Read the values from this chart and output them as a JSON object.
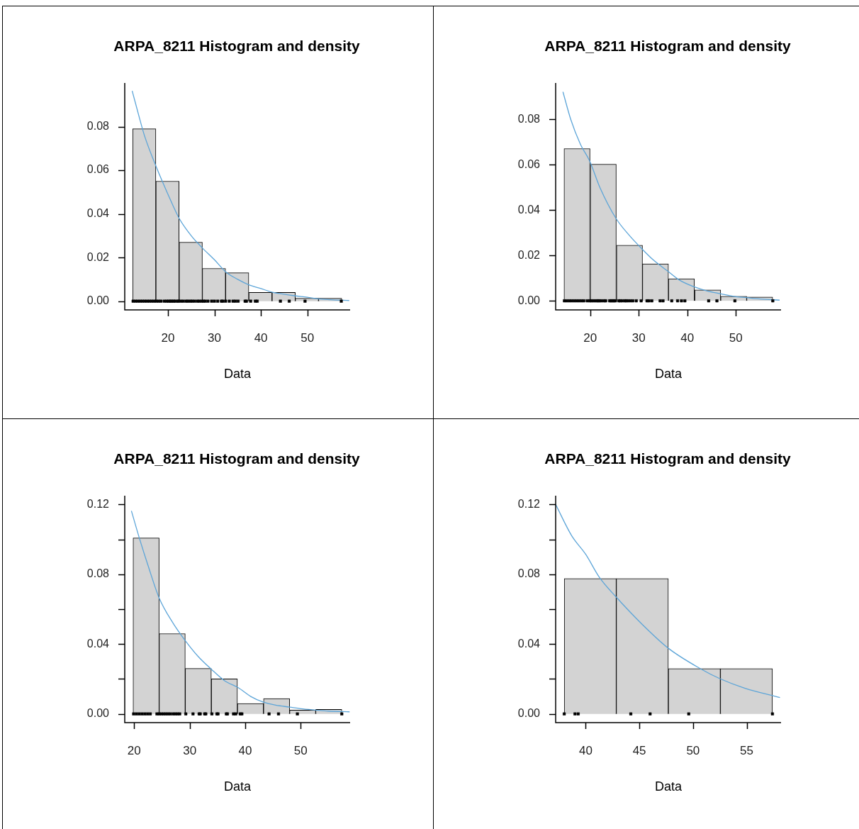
{
  "chart_data": [
    {
      "type": "histogram",
      "title": "ARPA_8211 Histogram and density",
      "xlabel": "Data",
      "color": "#d3d3d3",
      "bins": [
        12.4,
        17.4,
        22.4,
        27.4,
        32.4,
        37.4,
        42.4,
        47.4,
        52.4,
        57.4
      ],
      "values": [
        0.079,
        0.055,
        0.027,
        0.015,
        0.013,
        0.004,
        0.004,
        0.0013,
        0.0013
      ],
      "xlim": [
        10.7,
        59.2
      ],
      "ylim": [
        -0.004,
        0.1
      ],
      "xticks": [
        20,
        30,
        40,
        50
      ],
      "yticks": [
        {
          "value": 0,
          "label": "0.00"
        },
        {
          "value": 0.02,
          "label": "0.02"
        },
        {
          "value": 0.04,
          "label": "0.04"
        },
        {
          "value": 0.06,
          "label": "0.06"
        },
        {
          "value": 0.08,
          "label": "0.08"
        }
      ],
      "series": [
        {
          "type": "line",
          "color": "#5da5d8",
          "x": [
            12.3,
            14,
            15,
            17.4,
            20,
            22.4,
            25,
            27.4,
            30,
            32.4,
            35,
            37.4,
            40,
            42.3,
            45,
            47.2,
            50,
            52.2,
            55,
            59.0
          ],
          "values": [
            0.0964,
            0.0829,
            0.0755,
            0.062,
            0.049,
            0.038,
            0.03,
            0.0244,
            0.019,
            0.0135,
            0.01,
            0.0075,
            0.0058,
            0.0042,
            0.0032,
            0.0025,
            0.0018,
            0.0011,
            0.0007,
            0.0003
          ]
        },
        {
          "type": "scatter",
          "marker": "square",
          "color": "#000000",
          "x": [
            12.5,
            13,
            13.5,
            14,
            14.5,
            15,
            15.5,
            16,
            16.5,
            17,
            17.5,
            18,
            18.5,
            19.2,
            19.7,
            20.1,
            20.5,
            20.8,
            21.2,
            21.5,
            22.0,
            22.3,
            22.8,
            23.3,
            23.9,
            24.3,
            24.8,
            25.2,
            25.7,
            26.3,
            26.7,
            27.2,
            27.6,
            28.0,
            28.6,
            29.4,
            30.0,
            30.7,
            31.5,
            31.8,
            32.4,
            33.2,
            34.0,
            34.5,
            35.1,
            36.6,
            36.9,
            37.8,
            38.8,
            39.2,
            44.2,
            46.1,
            49.5,
            57.3
          ],
          "values": [
            0,
            0,
            0,
            0,
            0,
            0,
            0,
            0,
            0,
            0,
            0,
            0,
            0,
            0,
            0,
            0,
            0,
            0,
            0,
            0,
            0,
            0,
            0,
            0,
            0,
            0,
            0,
            0,
            0,
            0,
            0,
            0,
            0,
            0,
            0,
            0,
            0,
            0,
            0,
            0,
            0,
            0,
            0,
            0,
            0,
            0,
            0,
            0,
            0,
            0,
            0,
            0,
            0,
            0
          ]
        }
      ]
    },
    {
      "type": "histogram",
      "title": "ARPA_8211 Histogram and density",
      "xlabel": "Data",
      "color": "#d3d3d3",
      "bins": [
        14.6,
        20.0,
        25.4,
        30.8,
        36.1,
        41.5,
        46.9,
        52.2,
        57.6
      ],
      "values": [
        0.0671,
        0.0602,
        0.0245,
        0.0163,
        0.0097,
        0.0048,
        0.002,
        0.0017
      ],
      "xlim": [
        12.9,
        59.3
      ],
      "ylim": [
        -0.004,
        0.096
      ],
      "xticks": [
        20,
        30,
        40,
        50
      ],
      "yticks": [
        {
          "value": 0,
          "label": "0.00"
        },
        {
          "value": 0.02,
          "label": "0.02"
        },
        {
          "value": 0.04,
          "label": "0.04"
        },
        {
          "value": 0.06,
          "label": "0.06"
        },
        {
          "value": 0.08,
          "label": "0.08"
        }
      ],
      "series": [
        {
          "type": "line",
          "color": "#5da5d8",
          "x": [
            14.4,
            16,
            18,
            19.9,
            22,
            25.3,
            28,
            30.7,
            33,
            36.1,
            38.5,
            41.5,
            44,
            46.9,
            49.5,
            52.2,
            55,
            59.0
          ],
          "values": [
            0.0921,
            0.08,
            0.069,
            0.0616,
            0.05,
            0.0364,
            0.029,
            0.0228,
            0.018,
            0.0129,
            0.009,
            0.0061,
            0.0044,
            0.0031,
            0.002,
            0.0014,
            0.0008,
            0.0003
          ]
        },
        {
          "type": "scatter",
          "marker": "square",
          "color": "#000000",
          "x": [
            14.7,
            15.2,
            15.7,
            16.2,
            16.7,
            17.2,
            17.7,
            18.2,
            18.7,
            19.4,
            19.9,
            20.2,
            20.6,
            21.0,
            21.4,
            21.7,
            22.0,
            22.4,
            22.9,
            23.2,
            24.0,
            24.3,
            24.6,
            24.9,
            25.2,
            25.9,
            26.2,
            26.6,
            27.1,
            27.4,
            27.8,
            28.3,
            28.8,
            29.5,
            30.5,
            31.7,
            32.1,
            32.7,
            34.4,
            35.0,
            36.8,
            38.0,
            38.8,
            39.5,
            44.4,
            46.1,
            49.8,
            57.6
          ],
          "values": [
            0,
            0,
            0,
            0,
            0,
            0,
            0,
            0,
            0,
            0,
            0,
            0,
            0,
            0,
            0,
            0,
            0,
            0,
            0,
            0,
            0,
            0,
            0,
            0,
            0,
            0,
            0,
            0,
            0,
            0,
            0,
            0,
            0,
            0,
            0,
            0,
            0,
            0,
            0,
            0,
            0,
            0,
            0,
            0,
            0,
            0,
            0,
            0
          ]
        }
      ]
    },
    {
      "type": "histogram",
      "title": "ARPA_8211 Histogram and density",
      "xlabel": "Data",
      "color": "#d3d3d3",
      "bins": [
        19.8,
        24.5,
        29.2,
        33.9,
        38.6,
        43.3,
        48.0,
        52.7,
        57.4
      ],
      "values": [
        0.1008,
        0.046,
        0.026,
        0.0201,
        0.0059,
        0.0088,
        0.0022,
        0.0026
      ],
      "xlim": [
        18.3,
        58.9
      ],
      "ylim": [
        -0.005,
        0.125
      ],
      "xticks": [
        20,
        30,
        40,
        50
      ],
      "yticks": [
        {
          "value": 0,
          "label": "0.00"
        },
        {
          "value": 0.02,
          "label": null
        },
        {
          "value": 0.04,
          "label": "0.04"
        },
        {
          "value": 0.06,
          "label": null
        },
        {
          "value": 0.08,
          "label": "0.08"
        },
        {
          "value": 0.1,
          "label": null
        },
        {
          "value": 0.12,
          "label": "0.12"
        }
      ],
      "series": [
        {
          "type": "line",
          "color": "#5da5d8",
          "x": [
            19.5,
            21,
            22.5,
            24.5,
            27,
            29.2,
            31.5,
            33.9,
            36.3,
            38.7,
            41,
            43.2,
            45.5,
            48,
            50,
            52.7,
            55,
            58.8
          ],
          "values": [
            0.1163,
            0.1,
            0.085,
            0.0664,
            0.052,
            0.042,
            0.033,
            0.0256,
            0.019,
            0.0151,
            0.01,
            0.0068,
            0.005,
            0.0039,
            0.003,
            0.0022,
            0.0016,
            0.0012
          ]
        },
        {
          "type": "scatter",
          "marker": "square",
          "color": "#000000",
          "x": [
            19.9,
            20.4,
            20.9,
            21.4,
            21.9,
            22.4,
            22.9,
            24.1,
            24.5,
            24.9,
            25.3,
            25.7,
            26.1,
            26.5,
            27.0,
            27.4,
            27.8,
            28.2,
            29.3,
            30.6,
            31.7,
            31.9,
            32.7,
            32.9,
            34.0,
            34.9,
            35.1,
            36.6,
            36.8,
            37.9,
            38.3,
            39.1,
            39.4,
            44.3,
            46.0,
            49.4,
            57.4
          ],
          "values": [
            0,
            0,
            0,
            0,
            0,
            0,
            0,
            0,
            0,
            0,
            0,
            0,
            0,
            0,
            0,
            0,
            0,
            0,
            0,
            0,
            0,
            0,
            0,
            0,
            0,
            0,
            0,
            0,
            0,
            0,
            0,
            0,
            0,
            0,
            0,
            0,
            0
          ]
        }
      ]
    },
    {
      "type": "histogram",
      "title": "ARPA_8211 Histogram and density",
      "xlabel": "Data",
      "color": "#d3d3d3",
      "bins": [
        38.0,
        42.85,
        47.7,
        52.55,
        57.4
      ],
      "values": [
        0.0775,
        0.0775,
        0.0259,
        0.0259
      ],
      "xlim": [
        37.2,
        58.2
      ],
      "ylim": [
        -0.005,
        0.125
      ],
      "xticks": [
        40,
        45,
        50,
        55
      ],
      "yticks": [
        {
          "value": 0,
          "label": "0.00"
        },
        {
          "value": 0.02,
          "label": null
        },
        {
          "value": 0.04,
          "label": "0.04"
        },
        {
          "value": 0.06,
          "label": null
        },
        {
          "value": 0.08,
          "label": "0.08"
        },
        {
          "value": 0.1,
          "label": null
        },
        {
          "value": 0.12,
          "label": "0.12"
        }
      ],
      "series": [
        {
          "type": "line",
          "color": "#5da5d8",
          "x": [
            37.2,
            38.7,
            40.0,
            41.3,
            42.8,
            45.2,
            47.7,
            50.6,
            52.5,
            54.8,
            58.1
          ],
          "values": [
            0.12,
            0.102,
            0.0914,
            0.078,
            0.0672,
            0.0517,
            0.0376,
            0.0262,
            0.0202,
            0.0148,
            0.0094
          ]
        },
        {
          "type": "scatter",
          "marker": "square",
          "color": "#000000",
          "x": [
            38.0,
            39.0,
            39.3,
            44.2,
            46.0,
            49.6,
            57.4
          ],
          "values": [
            0,
            0,
            0,
            0,
            0,
            0,
            0
          ]
        }
      ]
    }
  ]
}
